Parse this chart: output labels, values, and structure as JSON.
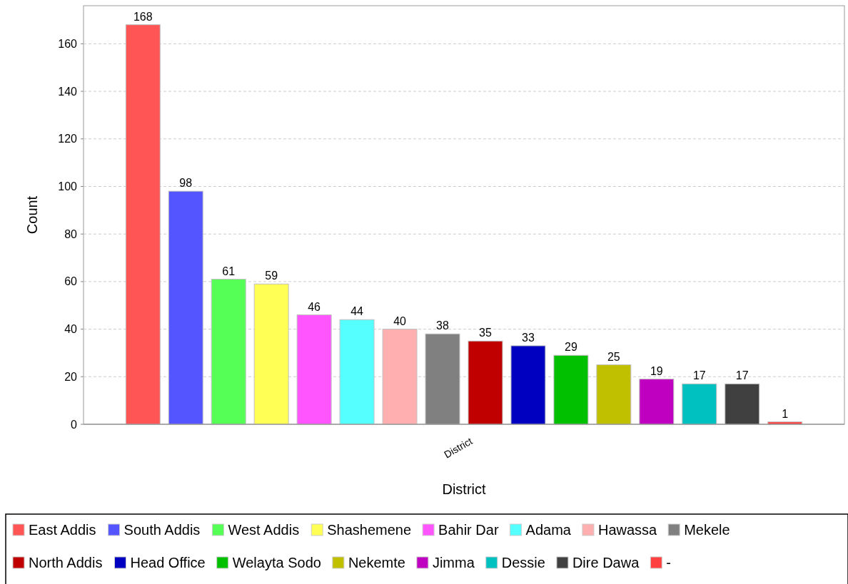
{
  "chart_data": {
    "type": "bar",
    "xlabel": "District",
    "ylabel": "Count",
    "categories": [
      "District"
    ],
    "series": [
      {
        "name": "East Addis",
        "color": "#ff5555",
        "values": [
          168
        ]
      },
      {
        "name": "South Addis",
        "color": "#5555ff",
        "values": [
          98
        ]
      },
      {
        "name": "West Addis",
        "color": "#55ff55",
        "values": [
          61
        ]
      },
      {
        "name": "Shashemene",
        "color": "#ffff55",
        "values": [
          59
        ]
      },
      {
        "name": "Bahir Dar",
        "color": "#ff55ff",
        "values": [
          46
        ]
      },
      {
        "name": "Adama",
        "color": "#55ffff",
        "values": [
          44
        ]
      },
      {
        "name": "Hawassa",
        "color": "#ffafaf",
        "values": [
          40
        ]
      },
      {
        "name": "Mekele",
        "color": "#808080",
        "values": [
          38
        ]
      },
      {
        "name": "North Addis",
        "color": "#c00000",
        "values": [
          35
        ]
      },
      {
        "name": "Head Office",
        "color": "#0000c0",
        "values": [
          33
        ]
      },
      {
        "name": "Welayta Sodo",
        "color": "#00c000",
        "values": [
          29
        ]
      },
      {
        "name": "Nekemte",
        "color": "#c0c000",
        "values": [
          25
        ]
      },
      {
        "name": "Jimma",
        "color": "#c000c0",
        "values": [
          19
        ]
      },
      {
        "name": "Dessie",
        "color": "#00c0c0",
        "values": [
          17
        ]
      },
      {
        "name": "Dire Dawa",
        "color": "#404040",
        "values": [
          17
        ]
      },
      {
        "name": "-",
        "color": "#ff4040",
        "values": [
          1
        ]
      }
    ],
    "ylim": [
      0,
      176
    ],
    "yticks": [
      0,
      20,
      40,
      60,
      80,
      100,
      120,
      140,
      160
    ],
    "grid": "y",
    "data_labels": true,
    "legend": "bottom"
  }
}
